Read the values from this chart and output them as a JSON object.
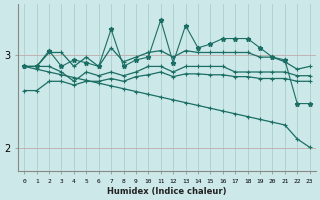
{
  "xlabel": "Humidex (Indice chaleur)",
  "x": [
    0,
    1,
    2,
    3,
    4,
    5,
    6,
    7,
    8,
    9,
    10,
    11,
    12,
    13,
    14,
    15,
    16,
    17,
    18,
    19,
    20,
    21,
    22,
    23
  ],
  "line_spiky": [
    2.88,
    2.88,
    3.05,
    2.88,
    2.95,
    2.92,
    2.88,
    3.28,
    2.88,
    2.95,
    2.98,
    3.38,
    2.92,
    3.32,
    3.08,
    3.12,
    3.18,
    3.18,
    3.18,
    3.08,
    2.98,
    2.95,
    2.48,
    2.48
  ],
  "line_upper": [
    2.88,
    2.88,
    3.03,
    3.03,
    2.88,
    2.98,
    2.88,
    3.08,
    2.93,
    2.98,
    3.03,
    3.05,
    2.98,
    3.05,
    3.03,
    3.03,
    3.03,
    3.03,
    3.03,
    2.98,
    2.98,
    2.93,
    2.85,
    2.88
  ],
  "line_mid1": [
    2.88,
    2.88,
    2.88,
    2.82,
    2.72,
    2.82,
    2.78,
    2.82,
    2.78,
    2.82,
    2.88,
    2.88,
    2.82,
    2.88,
    2.88,
    2.88,
    2.88,
    2.82,
    2.82,
    2.82,
    2.82,
    2.82,
    2.78,
    2.78
  ],
  "line_mid2": [
    2.62,
    2.62,
    2.72,
    2.72,
    2.68,
    2.72,
    2.72,
    2.75,
    2.72,
    2.77,
    2.79,
    2.82,
    2.77,
    2.8,
    2.8,
    2.79,
    2.79,
    2.77,
    2.77,
    2.75,
    2.75,
    2.75,
    2.72,
    2.72
  ],
  "line_diag": [
    2.88,
    2.85,
    2.82,
    2.79,
    2.76,
    2.73,
    2.7,
    2.67,
    2.64,
    2.61,
    2.58,
    2.55,
    2.52,
    2.49,
    2.46,
    2.43,
    2.4,
    2.37,
    2.34,
    2.31,
    2.28,
    2.25,
    2.1,
    2.01
  ],
  "bg_color": "#cce8e8",
  "line_color": "#1a6e64",
  "grid_color_v": "#aacece",
  "grid_color_h": "#c0aaaa",
  "yticks": [
    2,
    3
  ],
  "ylim": [
    1.75,
    3.55
  ],
  "xlim": [
    -0.5,
    23.5
  ]
}
